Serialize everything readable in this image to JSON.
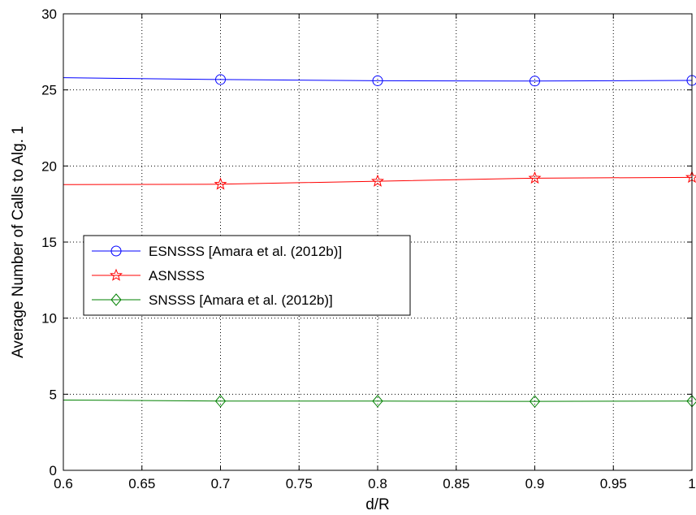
{
  "chart_data": {
    "type": "line",
    "title": "",
    "xlabel": "d/R",
    "ylabel": "Average Number of Calls to Alg. 1",
    "xlim": [
      0.6,
      1.0
    ],
    "ylim": [
      0,
      30
    ],
    "x_ticks": [
      0.6,
      0.65,
      0.7,
      0.75,
      0.8,
      0.85,
      0.9,
      0.95,
      1.0
    ],
    "x_tick_labels": [
      "0.6",
      "0.65",
      "0.7",
      "0.75",
      "0.8",
      "0.85",
      "0.9",
      "0.95",
      "1"
    ],
    "y_ticks": [
      0,
      5,
      10,
      15,
      20,
      25,
      30
    ],
    "y_tick_labels": [
      "0",
      "5",
      "10",
      "15",
      "20",
      "25",
      "30"
    ],
    "grid": true,
    "legend_position": "center-left",
    "x": [
      0.6,
      0.7,
      0.8,
      0.9,
      1.0
    ],
    "series": [
      {
        "name": "ESNSSS [Amara et al. (2012b)]",
        "values": [
          25.8,
          25.68,
          25.6,
          25.58,
          25.62
        ],
        "color": "#0000ff",
        "marker": "circle"
      },
      {
        "name": "ASNSSS",
        "values": [
          18.78,
          18.8,
          19.0,
          19.2,
          19.25
        ],
        "color": "#ff0000",
        "marker": "star"
      },
      {
        "name": "SNSSS [Amara et al. (2012b)]",
        "values": [
          4.62,
          4.55,
          4.55,
          4.53,
          4.55
        ],
        "color": "#008000",
        "marker": "diamond"
      }
    ]
  }
}
